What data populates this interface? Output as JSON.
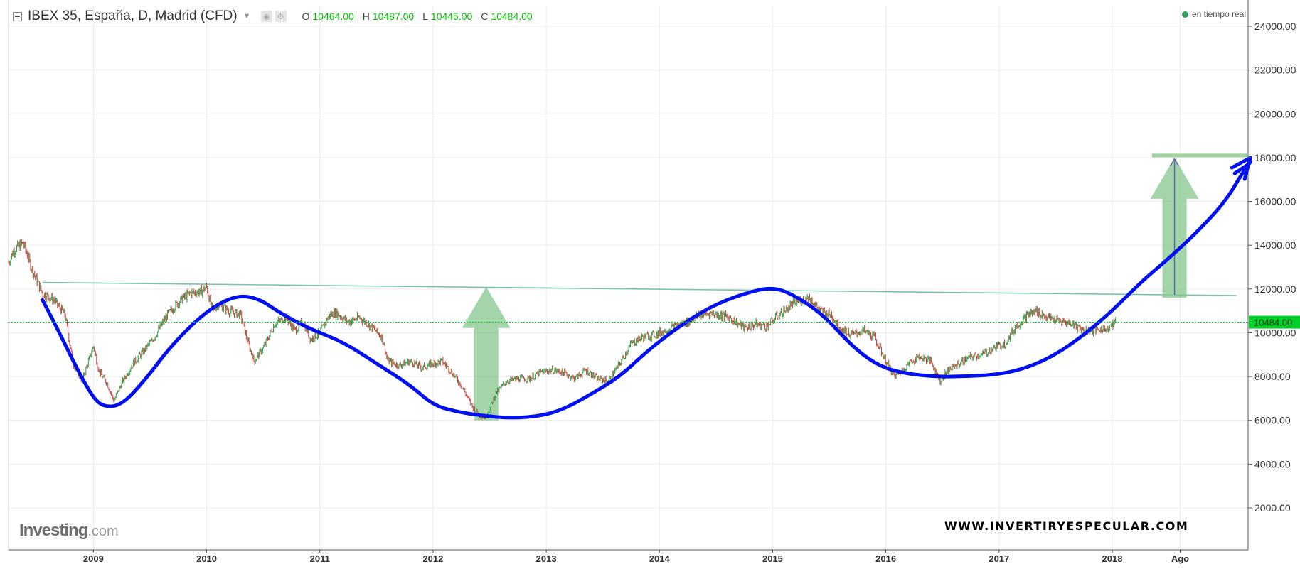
{
  "header": {
    "title": "IBEX 35, España, D, Madrid (CFD)",
    "dropdown_icon": "chevron-down-icon",
    "ohlc": [
      {
        "key": "O",
        "value": "10464.00"
      },
      {
        "key": "H",
        "value": "10487.00"
      },
      {
        "key": "L",
        "value": "10445.00"
      },
      {
        "key": "C",
        "value": "10484.00"
      }
    ]
  },
  "realtime": "en tiempo real",
  "brand": {
    "name": "Investing",
    "domain": ".com"
  },
  "watermark": "WWW.INVERTIRYESPECULAR.COM",
  "colors": {
    "up": "#26a041",
    "down": "#d23a3a",
    "trend_curve": "#0010f0",
    "resistance": "#7cc3b0",
    "arrow": "#86c68e",
    "target_line": "#9fd3a0",
    "last_price": "#00d02a"
  },
  "chart_data": {
    "type": "line",
    "title": "IBEX 35, España, D, Madrid (CFD)",
    "xlabel": "",
    "ylabel": "",
    "x_range": [
      2008.25,
      2019.2
    ],
    "ylim": [
      0,
      25000
    ],
    "y_ticks": [
      "24000.00",
      "22000.00",
      "20000.00",
      "18000.00",
      "16000.00",
      "14000.00",
      "12000.00",
      "10000.00",
      "8000.00",
      "6000.00",
      "4000.00",
      "2000.00"
    ],
    "x_ticks": [
      {
        "t": 2009.0,
        "label": "2009"
      },
      {
        "t": 2010.0,
        "label": "2010"
      },
      {
        "t": 2011.0,
        "label": "2011"
      },
      {
        "t": 2012.0,
        "label": "2012"
      },
      {
        "t": 2013.0,
        "label": "2013"
      },
      {
        "t": 2014.0,
        "label": "2014"
      },
      {
        "t": 2015.0,
        "label": "2015"
      },
      {
        "t": 2016.0,
        "label": "2016"
      },
      {
        "t": 2017.0,
        "label": "2017"
      },
      {
        "t": 2018.0,
        "label": "2018"
      },
      {
        "t": 2018.6,
        "label": "Ago"
      }
    ],
    "grid": true,
    "last_price": {
      "value": 10484,
      "label": "10484.00"
    },
    "price_path": [
      [
        2008.25,
        13200
      ],
      [
        2008.3,
        13800
      ],
      [
        2008.38,
        14100
      ],
      [
        2008.45,
        13000
      ],
      [
        2008.55,
        11800
      ],
      [
        2008.65,
        11500
      ],
      [
        2008.75,
        10800
      ],
      [
        2008.82,
        8600
      ],
      [
        2008.9,
        7800
      ],
      [
        2009.0,
        9400
      ],
      [
        2009.05,
        8200
      ],
      [
        2009.12,
        7700
      ],
      [
        2009.18,
        6900
      ],
      [
        2009.25,
        7700
      ],
      [
        2009.35,
        8600
      ],
      [
        2009.45,
        9200
      ],
      [
        2009.55,
        9900
      ],
      [
        2009.65,
        10800
      ],
      [
        2009.75,
        11400
      ],
      [
        2009.85,
        11800
      ],
      [
        2009.95,
        11900
      ],
      [
        2010.0,
        12100
      ],
      [
        2010.05,
        11000
      ],
      [
        2010.1,
        11300
      ],
      [
        2010.2,
        11000
      ],
      [
        2010.3,
        10800
      ],
      [
        2010.38,
        9300
      ],
      [
        2010.42,
        8700
      ],
      [
        2010.5,
        9300
      ],
      [
        2010.6,
        10400
      ],
      [
        2010.7,
        10700
      ],
      [
        2010.78,
        10100
      ],
      [
        2010.85,
        10500
      ],
      [
        2010.92,
        9700
      ],
      [
        2011.0,
        10000
      ],
      [
        2011.08,
        10800
      ],
      [
        2011.15,
        10900
      ],
      [
        2011.25,
        10500
      ],
      [
        2011.35,
        10700
      ],
      [
        2011.45,
        10300
      ],
      [
        2011.55,
        9800
      ],
      [
        2011.6,
        8700
      ],
      [
        2011.7,
        8500
      ],
      [
        2011.8,
        8700
      ],
      [
        2011.9,
        8400
      ],
      [
        2012.0,
        8600
      ],
      [
        2012.08,
        8700
      ],
      [
        2012.15,
        8300
      ],
      [
        2012.25,
        7600
      ],
      [
        2012.35,
        6600
      ],
      [
        2012.4,
        6300
      ],
      [
        2012.45,
        6100
      ],
      [
        2012.5,
        6500
      ],
      [
        2012.55,
        7200
      ],
      [
        2012.65,
        7800
      ],
      [
        2012.75,
        7900
      ],
      [
        2012.85,
        7900
      ],
      [
        2012.95,
        8200
      ],
      [
        2013.05,
        8300
      ],
      [
        2013.15,
        8200
      ],
      [
        2013.25,
        7900
      ],
      [
        2013.35,
        8300
      ],
      [
        2013.45,
        7900
      ],
      [
        2013.55,
        7800
      ],
      [
        2013.65,
        8600
      ],
      [
        2013.75,
        9500
      ],
      [
        2013.85,
        9800
      ],
      [
        2013.95,
        9900
      ],
      [
        2014.05,
        10100
      ],
      [
        2014.15,
        10300
      ],
      [
        2014.25,
        10500
      ],
      [
        2014.35,
        10800
      ],
      [
        2014.45,
        10900
      ],
      [
        2014.55,
        10800
      ],
      [
        2014.65,
        10600
      ],
      [
        2014.75,
        10200
      ],
      [
        2014.85,
        10400
      ],
      [
        2014.95,
        10300
      ],
      [
        2015.05,
        10800
      ],
      [
        2015.15,
        11200
      ],
      [
        2015.25,
        11500
      ],
      [
        2015.32,
        11600
      ],
      [
        2015.42,
        11000
      ],
      [
        2015.52,
        10800
      ],
      [
        2015.6,
        10200
      ],
      [
        2015.7,
        9900
      ],
      [
        2015.8,
        10100
      ],
      [
        2015.9,
        9800
      ],
      [
        2016.0,
        8700
      ],
      [
        2016.08,
        8000
      ],
      [
        2016.15,
        8300
      ],
      [
        2016.22,
        8700
      ],
      [
        2016.3,
        8900
      ],
      [
        2016.4,
        8700
      ],
      [
        2016.48,
        7800
      ],
      [
        2016.55,
        8300
      ],
      [
        2016.65,
        8600
      ],
      [
        2016.75,
        8900
      ],
      [
        2016.85,
        9000
      ],
      [
        2016.95,
        9300
      ],
      [
        2017.05,
        9500
      ],
      [
        2017.15,
        10300
      ],
      [
        2017.25,
        10800
      ],
      [
        2017.33,
        11000
      ],
      [
        2017.42,
        10700
      ],
      [
        2017.55,
        10500
      ],
      [
        2017.65,
        10400
      ],
      [
        2017.75,
        10100
      ],
      [
        2017.85,
        10100
      ],
      [
        2017.95,
        10200
      ],
      [
        2018.03,
        10484
      ]
    ],
    "annotations": {
      "trend_curve": [
        [
          2008.55,
          11500
        ],
        [
          2008.7,
          10000
        ],
        [
          2008.85,
          8400
        ],
        [
          2009.0,
          7000
        ],
        [
          2009.1,
          6600
        ],
        [
          2009.25,
          6700
        ],
        [
          2009.45,
          7800
        ],
        [
          2009.7,
          9500
        ],
        [
          2010.0,
          11000
        ],
        [
          2010.25,
          11700
        ],
        [
          2010.45,
          11600
        ],
        [
          2010.65,
          10900
        ],
        [
          2010.9,
          10200
        ],
        [
          2011.2,
          9600
        ],
        [
          2011.5,
          8600
        ],
        [
          2011.8,
          7600
        ],
        [
          2012.0,
          6700
        ],
        [
          2012.2,
          6400
        ],
        [
          2012.45,
          6200
        ],
        [
          2012.7,
          6100
        ],
        [
          2012.95,
          6200
        ],
        [
          2013.15,
          6500
        ],
        [
          2013.4,
          7200
        ],
        [
          2013.65,
          8000
        ],
        [
          2013.9,
          9200
        ],
        [
          2014.15,
          10200
        ],
        [
          2014.45,
          11200
        ],
        [
          2014.75,
          11800
        ],
        [
          2015.0,
          12100
        ],
        [
          2015.2,
          11700
        ],
        [
          2015.45,
          10800
        ],
        [
          2015.7,
          9400
        ],
        [
          2015.9,
          8600
        ],
        [
          2016.1,
          8200
        ],
        [
          2016.4,
          8000
        ],
        [
          2016.7,
          8000
        ],
        [
          2017.0,
          8100
        ],
        [
          2017.25,
          8400
        ],
        [
          2017.5,
          9000
        ],
        [
          2017.75,
          9900
        ],
        [
          2018.0,
          11000
        ],
        [
          2018.25,
          12300
        ],
        [
          2018.5,
          13400
        ],
        [
          2018.75,
          14600
        ],
        [
          2019.0,
          16000
        ],
        [
          2019.15,
          17300
        ],
        [
          2019.22,
          17800
        ]
      ],
      "resistance_line": [
        [
          2008.55,
          12300
        ],
        [
          2019.1,
          11700
        ]
      ],
      "target_line": [
        [
          2018.35,
          18100
        ],
        [
          2019.2,
          18100
        ]
      ],
      "arrows": [
        {
          "x": 2012.47,
          "from": 6000,
          "to": 12100
        },
        {
          "x": 2018.55,
          "from": 11600,
          "to": 18000
        }
      ]
    }
  }
}
